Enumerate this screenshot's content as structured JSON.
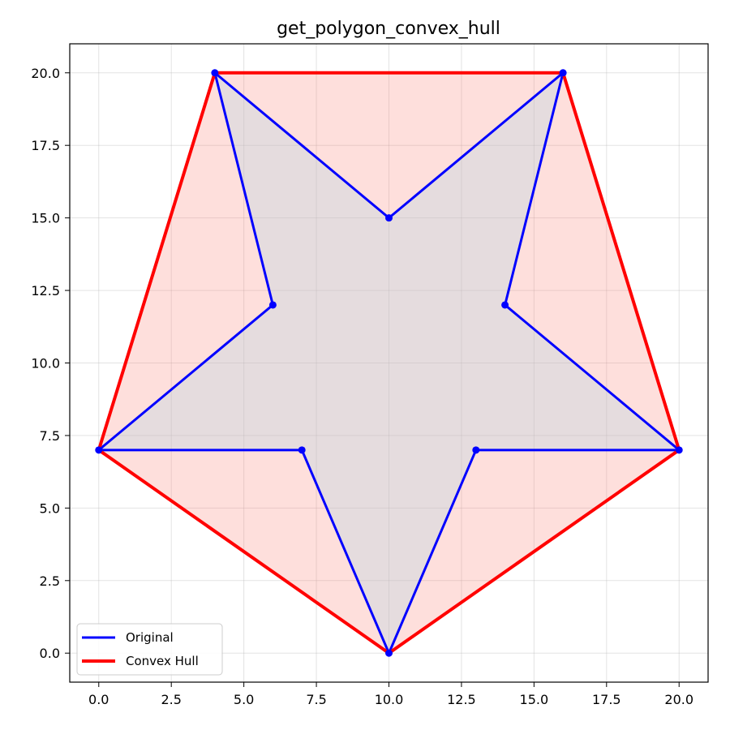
{
  "chart_data": {
    "type": "line",
    "title": "get_polygon_convex_hull",
    "xlabel": "",
    "ylabel": "",
    "xlim": [
      -1.0,
      21.0
    ],
    "ylim": [
      -1.0,
      21.0
    ],
    "xticks": [
      "0.0",
      "2.5",
      "5.0",
      "7.5",
      "10.0",
      "12.5",
      "15.0",
      "17.5",
      "20.0"
    ],
    "yticks": [
      "0.0",
      "2.5",
      "5.0",
      "7.5",
      "10.0",
      "12.5",
      "15.0",
      "17.5",
      "20.0"
    ],
    "grid": true,
    "legend_position": "lower-left",
    "series": [
      {
        "name": "Original",
        "color": "#0000ff",
        "fill": "#add8e6",
        "points": [
          [
            10,
            15
          ],
          [
            16,
            20
          ],
          [
            14,
            12
          ],
          [
            20,
            7
          ],
          [
            13,
            7
          ],
          [
            10,
            0
          ],
          [
            7,
            7
          ],
          [
            0,
            7
          ],
          [
            6,
            12
          ],
          [
            4,
            20
          ]
        ]
      },
      {
        "name": "Convex Hull",
        "color": "#ff0000",
        "fill": "#fa8072",
        "points": [
          [
            4,
            20
          ],
          [
            16,
            20
          ],
          [
            20,
            7
          ],
          [
            10,
            0
          ],
          [
            0,
            7
          ]
        ]
      }
    ]
  }
}
